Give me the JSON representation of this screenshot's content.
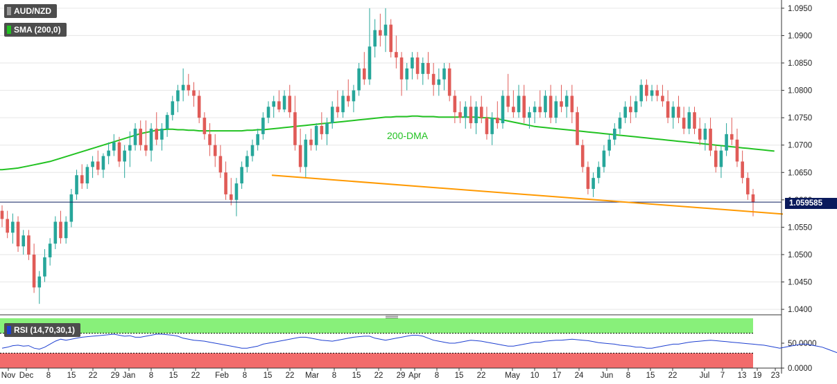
{
  "header": {
    "symbol": "AUD/NZD",
    "indicator": "SMA (200,0)",
    "rsi_indicator": "RSI (14,70,30,1)",
    "last_price": "1.059585"
  },
  "colors": {
    "up": "#26a69a",
    "down": "#e05b57",
    "sma": "#22c222",
    "trendline": "#ff9900",
    "rsi_line": "#1d3fd1",
    "rsi_overbought": "#88f07a",
    "rsi_oversold": "#f26b6b",
    "price_label": "#0a1a5c"
  },
  "chart_data": [
    {
      "type": "candlestick",
      "title": "AUD/NZD",
      "ylim": [
        1.039,
        1.0965
      ],
      "yticks": [
        "1.0950",
        "1.0900",
        "1.0850",
        "1.0800",
        "1.0750",
        "1.0700",
        "1.0650",
        "1.0600",
        "1.0550",
        "1.0500",
        "1.0450",
        "1.0400"
      ],
      "xticks": [
        "Nov",
        "Dec",
        "8",
        "15",
        "22",
        "29",
        "Jan",
        "8",
        "15",
        "22",
        "Feb",
        "8",
        "15",
        "22",
        "Mar",
        "8",
        "15",
        "22",
        "29",
        "Apr",
        "8",
        "15",
        "22",
        "May",
        "10",
        "17",
        "24",
        "Jun",
        "8",
        "15",
        "22",
        "Jul",
        "7",
        "13",
        "19",
        "23"
      ],
      "annotations": [
        "200-DMA"
      ],
      "horizontal_line": 1.059585,
      "candles": [
        [
          1.058,
          1.059,
          1.055,
          1.0565
        ],
        [
          1.0565,
          1.058,
          1.053,
          1.054
        ],
        [
          1.054,
          1.0575,
          1.052,
          1.056
        ],
        [
          1.056,
          1.057,
          1.0505,
          1.0515
        ],
        [
          1.0515,
          1.0545,
          1.05,
          1.0535
        ],
        [
          1.0535,
          1.0545,
          1.049,
          1.05
        ],
        [
          1.05,
          1.052,
          1.043,
          1.044
        ],
        [
          1.044,
          1.047,
          1.041,
          1.046
        ],
        [
          1.046,
          1.051,
          1.045,
          1.0495
        ],
        [
          1.0495,
          1.053,
          1.048,
          1.052
        ],
        [
          1.052,
          1.057,
          1.051,
          1.056
        ],
        [
          1.056,
          1.058,
          1.052,
          1.053
        ],
        [
          1.053,
          1.057,
          1.052,
          1.056
        ],
        [
          1.056,
          1.062,
          1.055,
          1.061
        ],
        [
          1.061,
          1.0655,
          1.06,
          1.0645
        ],
        [
          1.0645,
          1.0665,
          1.062,
          1.063
        ],
        [
          1.063,
          1.0665,
          1.062,
          1.066
        ],
        [
          1.066,
          1.068,
          1.064,
          1.067
        ],
        [
          1.067,
          1.069,
          1.0645,
          1.0655
        ],
        [
          1.0655,
          1.0685,
          1.064,
          1.068
        ],
        [
          1.068,
          1.0705,
          1.0665,
          1.069
        ],
        [
          1.069,
          1.072,
          1.068,
          1.0705
        ],
        [
          1.0705,
          1.0715,
          1.066,
          1.067
        ],
        [
          1.067,
          1.07,
          1.064,
          1.069
        ],
        [
          1.069,
          1.0725,
          1.066,
          1.07
        ],
        [
          1.07,
          1.074,
          1.069,
          1.073
        ],
        [
          1.073,
          1.0745,
          1.069,
          1.07
        ],
        [
          1.07,
          1.0745,
          1.068,
          1.069
        ],
        [
          1.069,
          1.074,
          1.067,
          1.073
        ],
        [
          1.073,
          1.076,
          1.07,
          1.071
        ],
        [
          1.071,
          1.074,
          1.069,
          1.073
        ],
        [
          1.073,
          1.076,
          1.0715,
          1.0755
        ],
        [
          1.0755,
          1.079,
          1.0745,
          1.078
        ],
        [
          1.078,
          1.081,
          1.076,
          1.08
        ],
        [
          1.08,
          1.084,
          1.078,
          1.081
        ],
        [
          1.081,
          1.083,
          1.079,
          1.08
        ],
        [
          1.08,
          1.0815,
          1.077,
          1.079
        ],
        [
          1.079,
          1.08,
          1.074,
          1.075
        ],
        [
          1.075,
          1.076,
          1.071,
          1.072
        ],
        [
          1.072,
          1.074,
          1.068,
          1.07
        ],
        [
          1.07,
          1.072,
          1.066,
          1.068
        ],
        [
          1.068,
          1.07,
          1.064,
          1.065
        ],
        [
          1.065,
          1.067,
          1.06,
          1.061
        ],
        [
          1.061,
          1.064,
          1.059,
          1.06
        ],
        [
          1.06,
          1.064,
          1.057,
          1.063
        ],
        [
          1.063,
          1.067,
          1.062,
          1.066
        ],
        [
          1.066,
          1.069,
          1.065,
          1.068
        ],
        [
          1.068,
          1.071,
          1.067,
          1.07
        ],
        [
          1.07,
          1.073,
          1.069,
          1.072
        ],
        [
          1.072,
          1.076,
          1.071,
          1.075
        ],
        [
          1.075,
          1.078,
          1.074,
          1.077
        ],
        [
          1.077,
          1.079,
          1.075,
          1.078
        ],
        [
          1.078,
          1.08,
          1.076,
          1.0765
        ],
        [
          1.0765,
          1.08,
          1.076,
          1.079
        ],
        [
          1.079,
          1.081,
          1.075,
          1.076
        ],
        [
          1.076,
          1.079,
          1.069,
          1.07
        ],
        [
          1.07,
          1.073,
          1.065,
          1.066
        ],
        [
          1.066,
          1.072,
          1.064,
          1.071
        ],
        [
          1.071,
          1.073,
          1.069,
          1.07
        ],
        [
          1.07,
          1.074,
          1.069,
          1.0735
        ],
        [
          1.0735,
          1.076,
          1.071,
          1.072
        ],
        [
          1.072,
          1.075,
          1.07,
          1.074
        ],
        [
          1.074,
          1.078,
          1.073,
          1.077
        ],
        [
          1.077,
          1.08,
          1.075,
          1.076
        ],
        [
          1.076,
          1.08,
          1.075,
          1.079
        ],
        [
          1.079,
          1.082,
          1.077,
          1.078
        ],
        [
          1.078,
          1.081,
          1.076,
          1.08
        ],
        [
          1.08,
          1.085,
          1.079,
          1.084
        ],
        [
          1.084,
          1.087,
          1.081,
          1.082
        ],
        [
          1.082,
          1.095,
          1.081,
          1.088
        ],
        [
          1.088,
          1.093,
          1.086,
          1.091
        ],
        [
          1.091,
          1.094,
          1.088,
          1.09
        ],
        [
          1.09,
          1.095,
          1.087,
          1.092
        ],
        [
          1.092,
          1.093,
          1.086,
          1.087
        ],
        [
          1.087,
          1.09,
          1.084,
          1.086
        ],
        [
          1.086,
          1.087,
          1.079,
          1.082
        ],
        [
          1.082,
          1.085,
          1.08,
          1.084
        ],
        [
          1.084,
          1.087,
          1.082,
          1.086
        ],
        [
          1.086,
          1.087,
          1.082,
          1.083
        ],
        [
          1.083,
          1.086,
          1.081,
          1.085
        ],
        [
          1.085,
          1.087,
          1.082,
          1.083
        ],
        [
          1.083,
          1.085,
          1.079,
          1.081
        ],
        [
          1.081,
          1.084,
          1.079,
          1.082
        ],
        [
          1.082,
          1.085,
          1.08,
          1.084
        ],
        [
          1.084,
          1.085,
          1.078,
          1.079
        ],
        [
          1.079,
          1.08,
          1.074,
          1.076
        ],
        [
          1.076,
          1.078,
          1.074,
          1.075
        ],
        [
          1.075,
          1.078,
          1.073,
          1.077
        ],
        [
          1.077,
          1.079,
          1.073,
          1.074
        ],
        [
          1.074,
          1.078,
          1.072,
          1.077
        ],
        [
          1.077,
          1.079,
          1.074,
          1.075
        ],
        [
          1.075,
          1.077,
          1.071,
          1.072
        ],
        [
          1.072,
          1.076,
          1.07,
          1.075
        ],
        [
          1.075,
          1.078,
          1.073,
          1.074
        ],
        [
          1.074,
          1.08,
          1.073,
          1.079
        ],
        [
          1.079,
          1.083,
          1.076,
          1.077
        ],
        [
          1.077,
          1.08,
          1.075,
          1.076
        ],
        [
          1.076,
          1.081,
          1.075,
          1.079
        ],
        [
          1.079,
          1.081,
          1.074,
          1.075
        ],
        [
          1.075,
          1.077,
          1.073,
          1.076
        ],
        [
          1.076,
          1.078,
          1.074,
          1.077
        ],
        [
          1.077,
          1.08,
          1.075,
          1.076
        ],
        [
          1.076,
          1.08,
          1.075,
          1.079
        ],
        [
          1.079,
          1.081,
          1.074,
          1.075
        ],
        [
          1.075,
          1.079,
          1.074,
          1.078
        ],
        [
          1.078,
          1.081,
          1.076,
          1.077
        ],
        [
          1.077,
          1.08,
          1.075,
          1.079
        ],
        [
          1.079,
          1.081,
          1.074,
          1.076
        ],
        [
          1.076,
          1.077,
          1.07,
          1.07
        ],
        [
          1.07,
          1.071,
          1.065,
          1.066
        ],
        [
          1.066,
          1.067,
          1.061,
          1.062
        ],
        [
          1.062,
          1.065,
          1.0605,
          1.064
        ],
        [
          1.064,
          1.067,
          1.063,
          1.066
        ],
        [
          1.066,
          1.07,
          1.065,
          1.069
        ],
        [
          1.069,
          1.072,
          1.068,
          1.071
        ],
        [
          1.071,
          1.074,
          1.07,
          1.073
        ],
        [
          1.073,
          1.076,
          1.072,
          1.075
        ],
        [
          1.075,
          1.078,
          1.074,
          1.077
        ],
        [
          1.077,
          1.079,
          1.074,
          1.076
        ],
        [
          1.076,
          1.079,
          1.075,
          1.078
        ],
        [
          1.078,
          1.082,
          1.077,
          1.081
        ],
        [
          1.081,
          1.082,
          1.078,
          1.079
        ],
        [
          1.079,
          1.081,
          1.078,
          1.08
        ],
        [
          1.08,
          1.081,
          1.078,
          1.079
        ],
        [
          1.079,
          1.081,
          1.077,
          1.078
        ],
        [
          1.078,
          1.08,
          1.074,
          1.075
        ],
        [
          1.075,
          1.078,
          1.073,
          1.077
        ],
        [
          1.077,
          1.079,
          1.074,
          1.075
        ],
        [
          1.075,
          1.077,
          1.072,
          1.073
        ],
        [
          1.073,
          1.077,
          1.072,
          1.076
        ],
        [
          1.076,
          1.077,
          1.072,
          1.073
        ],
        [
          1.073,
          1.075,
          1.07,
          1.071
        ],
        [
          1.071,
          1.074,
          1.069,
          1.073
        ],
        [
          1.073,
          1.075,
          1.068,
          1.069
        ],
        [
          1.069,
          1.07,
          1.065,
          1.066
        ],
        [
          1.066,
          1.07,
          1.064,
          1.069
        ],
        [
          1.069,
          1.074,
          1.068,
          1.072
        ],
        [
          1.072,
          1.075,
          1.07,
          1.071
        ],
        [
          1.071,
          1.073,
          1.066,
          1.067
        ],
        [
          1.067,
          1.069,
          1.063,
          1.064
        ],
        [
          1.064,
          1.065,
          1.06,
          1.061
        ],
        [
          1.061,
          1.062,
          1.057,
          1.0596
        ]
      ],
      "sma_200": [
        1.0655,
        1.0656,
        1.0657,
        1.0658,
        1.066,
        1.0662,
        1.0664,
        1.0666,
        1.0668,
        1.067,
        1.0673,
        1.0676,
        1.0679,
        1.0682,
        1.0685,
        1.0688,
        1.0691,
        1.0694,
        1.0697,
        1.07,
        1.0703,
        1.0706,
        1.0709,
        1.0712,
        1.0715,
        1.0718,
        1.0721,
        1.0723,
        1.0725,
        1.0727,
        1.0728,
        1.0729,
        1.0729,
        1.0728,
        1.0728,
        1.0727,
        1.0727,
        1.0726,
        1.0726,
        1.0726,
        1.0726,
        1.0726,
        1.0726,
        1.0726,
        1.0726,
        1.0726,
        1.0727,
        1.0727,
        1.0728,
        1.0728,
        1.0729,
        1.073,
        1.0731,
        1.0732,
        1.0733,
        1.0734,
        1.0735,
        1.0736,
        1.0737,
        1.0738,
        1.0739,
        1.074,
        1.0741,
        1.0742,
        1.0743,
        1.0744,
        1.0745,
        1.0746,
        1.0747,
        1.0748,
        1.0749,
        1.075,
        1.0751,
        1.0751,
        1.0752,
        1.0752,
        1.0752,
        1.0753,
        1.0753,
        1.0752,
        1.0752,
        1.0752,
        1.0751,
        1.0751,
        1.0751,
        1.0751,
        1.0751,
        1.0751,
        1.0751,
        1.0751,
        1.075,
        1.075,
        1.0749,
        1.0748,
        1.0746,
        1.0744,
        1.0742,
        1.074,
        1.0738,
        1.0736,
        1.0734,
        1.0733,
        1.0732,
        1.0731,
        1.073,
        1.0729,
        1.0728,
        1.0727,
        1.0726,
        1.0725,
        1.0724,
        1.0723,
        1.0722,
        1.0721,
        1.072,
        1.0719,
        1.0718,
        1.0717,
        1.0716,
        1.0715,
        1.0714,
        1.0713,
        1.0712,
        1.0711,
        1.071,
        1.0709,
        1.0708,
        1.0707,
        1.0706,
        1.0705,
        1.0704,
        1.0703,
        1.0702,
        1.0701,
        1.07,
        1.0699,
        1.0698,
        1.0697,
        1.0696,
        1.0695,
        1.0694,
        1.0693,
        1.0692,
        1.0691,
        1.069,
        1.0689
      ],
      "trendline": {
        "from": [
          "Feb 15",
          1.0645
        ],
        "to": [
          "Jul 23",
          1.0574
        ]
      }
    },
    {
      "type": "line",
      "title": "RSI (14,70,30,1)",
      "ylim": [
        0,
        100
      ],
      "yticks": [
        "50.0000",
        "0.0000"
      ],
      "bands": {
        "overbought": 70,
        "oversold": 30
      },
      "values": [
        40,
        42,
        45,
        46,
        44,
        45,
        40,
        38,
        42,
        48,
        54,
        58,
        56,
        58,
        60,
        62,
        63,
        64,
        65,
        66,
        67,
        68,
        66,
        64,
        65,
        62,
        62,
        64,
        66,
        68,
        68,
        67,
        66,
        64,
        60,
        58,
        56,
        55,
        54,
        52,
        50,
        48,
        46,
        44,
        42,
        40,
        40,
        42,
        44,
        48,
        50,
        52,
        54,
        56,
        58,
        60,
        62,
        62,
        60,
        58,
        56,
        55,
        54,
        56,
        58,
        60,
        62,
        63,
        64,
        64,
        60,
        58,
        56,
        58,
        60,
        62,
        64,
        66,
        66,
        64,
        60,
        56,
        54,
        52,
        50,
        50,
        52,
        54,
        56,
        55,
        54,
        52,
        50,
        48,
        46,
        44,
        44,
        46,
        48,
        50,
        52,
        52,
        54,
        55,
        56,
        56,
        57,
        58,
        57,
        56,
        55,
        53,
        51,
        50,
        49,
        48,
        46,
        45,
        44,
        42,
        42,
        40,
        40,
        42,
        44,
        46,
        48,
        48,
        50,
        52,
        53,
        54,
        55,
        56,
        55,
        54,
        53,
        52,
        51,
        50,
        49,
        48,
        47,
        46,
        44,
        42,
        40,
        42,
        44,
        46,
        48,
        48,
        46,
        44,
        42,
        38,
        34,
        30
      ]
    }
  ]
}
